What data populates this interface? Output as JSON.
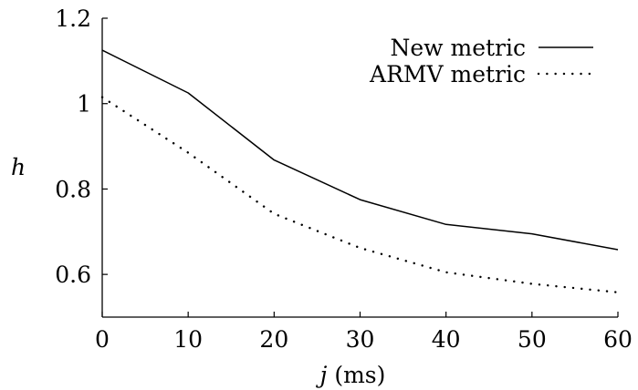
{
  "chart_data": {
    "type": "line",
    "title": "",
    "xlabel_var": "j",
    "xlabel_unit": " (ms)",
    "ylabel": "h",
    "x": [
      0,
      10,
      20,
      30,
      40,
      50,
      60
    ],
    "xlim": [
      0,
      60
    ],
    "ylim": [
      0.5,
      1.2
    ],
    "xticks": [
      0,
      10,
      20,
      30,
      40,
      50,
      60
    ],
    "yticks": [
      0.6,
      0.8,
      1,
      1.2
    ],
    "ytick_labels": [
      "0.6",
      "0.8",
      "1",
      "1.2"
    ],
    "grid": false,
    "legend_position": "top-right",
    "series": [
      {
        "name": "New metric",
        "style": "solid",
        "color": "#000000",
        "values": [
          1.125,
          1.025,
          0.868,
          0.775,
          0.717,
          0.695,
          0.658
        ]
      },
      {
        "name": "ARMV metric",
        "style": "dotted",
        "color": "#000000",
        "values": [
          1.015,
          0.885,
          0.742,
          0.662,
          0.605,
          0.578,
          0.558
        ]
      }
    ]
  }
}
